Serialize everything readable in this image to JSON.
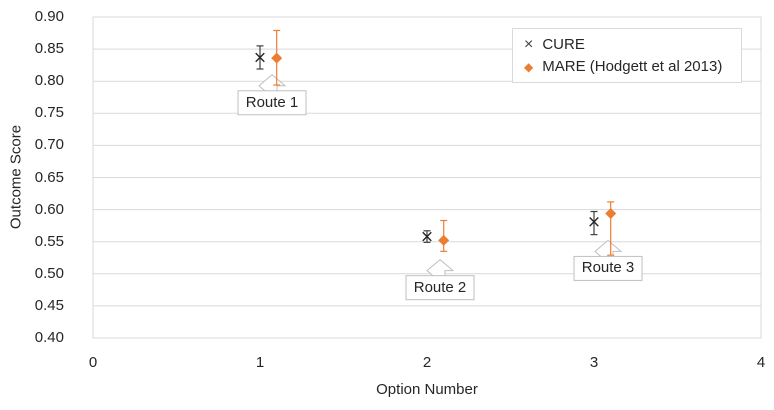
{
  "chart_data": {
    "type": "scatter",
    "title": "",
    "xlabel": "Option Number",
    "ylabel": "Outcome Score",
    "xlim": [
      0,
      4
    ],
    "ylim": [
      0.4,
      0.9
    ],
    "grid": "horizontal-only",
    "legend_position": "top-right-inside",
    "x_ticks": [
      0,
      1,
      2,
      3,
      4
    ],
    "x_tick_labels": [
      "0",
      "1",
      "2",
      "3",
      "4"
    ],
    "y_ticks": [
      0.9,
      0.85,
      0.8,
      0.75,
      0.7,
      0.65,
      0.6,
      0.55,
      0.5,
      0.45,
      0.4
    ],
    "y_tick_labels": [
      "0.90",
      "0.85",
      "0.80",
      "0.75",
      "0.70",
      "0.65",
      "0.60",
      "0.55",
      "0.50",
      "0.45",
      "0.40"
    ],
    "series": [
      {
        "name": "CURE",
        "marker": "x",
        "color": "#262626",
        "error_color": "#404040",
        "points": [
          {
            "x": 1.0,
            "y": 0.837,
            "err_low": 0.819,
            "err_high": 0.855
          },
          {
            "x": 2.0,
            "y": 0.558,
            "err_low": 0.549,
            "err_high": 0.567
          },
          {
            "x": 3.0,
            "y": 0.581,
            "err_low": 0.561,
            "err_high": 0.597
          }
        ]
      },
      {
        "name": "MARE (Hodgett et al 2013)",
        "marker": "diamond",
        "color": "#ED7D31",
        "error_color": "#ED7D31",
        "points": [
          {
            "x": 1.1,
            "y": 0.836,
            "err_low": 0.794,
            "err_high": 0.879
          },
          {
            "x": 2.1,
            "y": 0.552,
            "err_low": 0.535,
            "err_high": 0.583
          },
          {
            "x": 3.1,
            "y": 0.594,
            "err_low": 0.529,
            "err_high": 0.612
          }
        ]
      }
    ],
    "annotations": [
      {
        "label": "Route 1",
        "x": 1.072,
        "tip_y": 0.81
      },
      {
        "label": "Route 2",
        "x": 2.078,
        "tip_y": 0.522
      },
      {
        "label": "Route 3",
        "x": 3.084,
        "tip_y": 0.552
      }
    ]
  },
  "colors": {
    "background": "#FFFFFF",
    "gridline": "#D9D9D9",
    "plot_border": "#D9D9D9",
    "callout_border": "#BFBFBF",
    "cure_series": "#262626",
    "mare_series": "#ED7D31",
    "text": "#262626"
  }
}
